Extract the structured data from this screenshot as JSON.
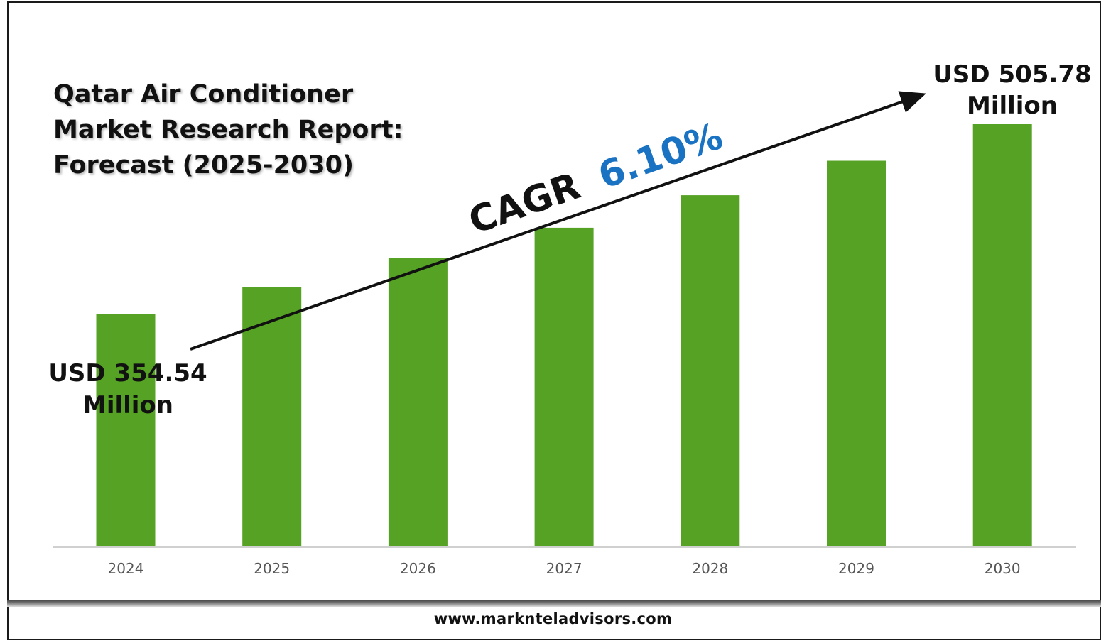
{
  "footer": {
    "url": "www.marknteladvisors.com"
  },
  "colors": {
    "bar": "#55a224",
    "cagr_value": "#1a73c2",
    "text": "#111111"
  },
  "chart_data": {
    "type": "bar",
    "title_lines": [
      "Qatar Air Conditioner",
      "Market Research Report:",
      "Forecast (2025-2030)"
    ],
    "categories": [
      "2024",
      "2025",
      "2026",
      "2027",
      "2028",
      "2029",
      "2030"
    ],
    "values": [
      354.54,
      376.17,
      399.12,
      423.47,
      449.29,
      476.7,
      505.78
    ],
    "unit": "USD Million",
    "ylim": [
      170,
      530
    ],
    "grid": false,
    "annotations": {
      "start_label_lines": [
        "USD 354.54",
        "Million"
      ],
      "end_label_lines": [
        "USD 505.78",
        "Million"
      ],
      "cagr_prefix": "CAGR",
      "cagr_value": "6.10%"
    }
  }
}
